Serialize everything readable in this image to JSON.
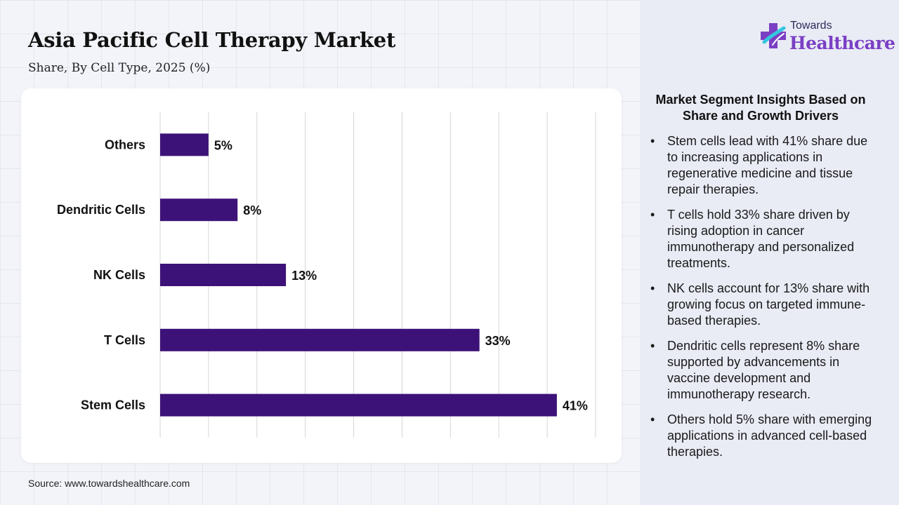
{
  "header": {
    "title": "Asia Pacific Cell Therapy Market",
    "subtitle": "Share, By Cell Type, 2025 (%)"
  },
  "logo": {
    "top_text": "Towards",
    "main_text": "Healthcare",
    "icon": "medical-cross-icon"
  },
  "source": "Source: www.towardshealthcare.com",
  "colors": {
    "bar": "#3d1278",
    "grid": "#d6d6d6",
    "brand_purple": "#7b3fc4",
    "brand_cyan": "#37c6e0",
    "panel_bg": "#e9ebf5"
  },
  "chart_data": {
    "type": "bar",
    "orientation": "horizontal",
    "categories": [
      "Others",
      "Dendritic Cells",
      "NK Cells",
      "T Cells",
      "Stem Cells"
    ],
    "values": [
      5,
      8,
      13,
      33,
      41
    ],
    "data_labels": [
      "5%",
      "8%",
      "13%",
      "33%",
      "41%"
    ],
    "unit": "%",
    "xlim": [
      0,
      45
    ],
    "grid": true,
    "legend": "none"
  },
  "insights": {
    "title": "Market Segment Insights Based on Share and Growth Drivers",
    "bullet": "•",
    "items": [
      "Stem cells lead with 41% share due to increasing applications in regenerative medicine and tissue repair therapies.",
      "T cells hold 33% share driven by rising adoption in cancer immunotherapy and personalized treatments.",
      "NK cells account for 13% share with growing focus on targeted immune-based therapies.",
      "Dendritic cells represent 8% share supported by advancements in vaccine development and immunotherapy research.",
      "Others hold 5% share with emerging applications in advanced cell-based therapies."
    ]
  }
}
